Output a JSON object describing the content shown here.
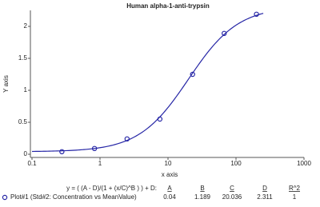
{
  "chart_data": {
    "type": "scatter",
    "title": "Human alpha-1-anti-trypsin",
    "xlabel": "x axis",
    "ylabel": "Y axis",
    "x": [
      0.275,
      0.83,
      2.5,
      7.6,
      23,
      67,
      200
    ],
    "series": [
      {
        "name": "Plot#1 (Std#2: Concentration vs MeanValue)",
        "color": "#2626a6",
        "values": [
          0.04,
          0.09,
          0.24,
          0.55,
          1.25,
          1.89,
          2.19
        ]
      }
    ],
    "log_x": true,
    "xlim": [
      0.1,
      1000
    ],
    "xticks": [
      0.1,
      1,
      10,
      100,
      1000
    ],
    "ylim": [
      0,
      2.25
    ],
    "yticks": [
      0,
      0.5,
      1,
      1.5,
      2
    ],
    "fit": {
      "equation": "y = ( (A - D)/(1 + (x/C)^B ) ) + D:",
      "headers": [
        "A",
        "B",
        "C",
        "D",
        "R^2"
      ],
      "values": [
        0.04,
        1.189,
        20.036,
        2.311,
        1
      ]
    }
  }
}
